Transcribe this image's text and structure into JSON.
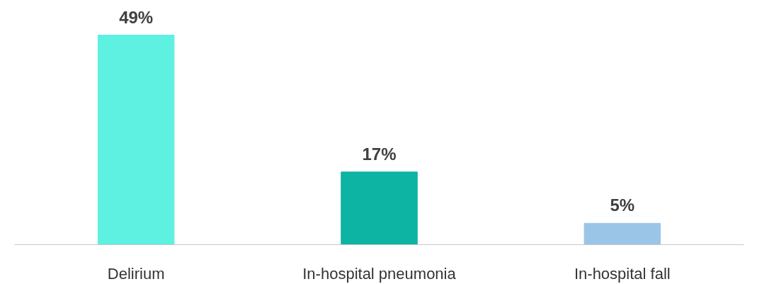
{
  "chart_data": {
    "type": "bar",
    "categories": [
      "Delirium",
      "In-hospital pneumonia",
      "In-hospital fall"
    ],
    "values": [
      49,
      17,
      5
    ],
    "colors": [
      "#5ef0e0",
      "#0db3a3",
      "#9ac5e6"
    ],
    "value_labels": [
      "49%",
      "17%",
      "5%"
    ],
    "grid": false,
    "tick_labels": "x"
  }
}
